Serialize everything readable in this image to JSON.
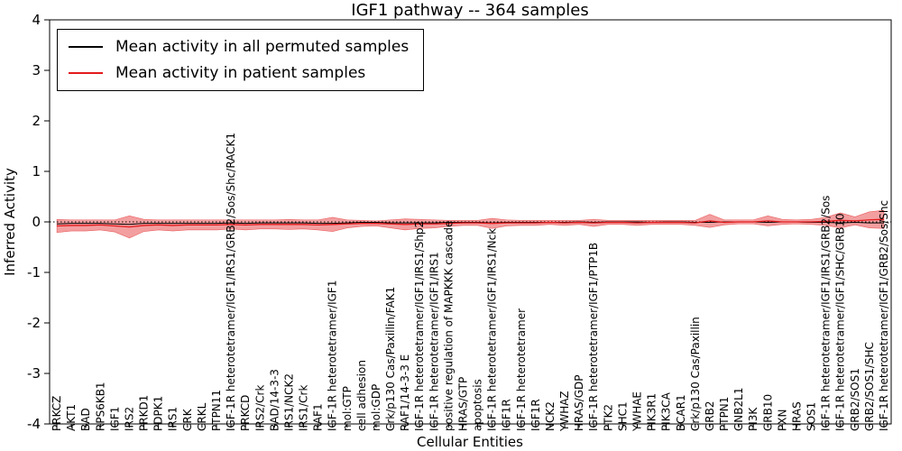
{
  "title": "IGF1 pathway -- 364 samples",
  "legend": [
    {
      "label": "Mean activity in all permuted samples",
      "color": "#000000"
    },
    {
      "label": "Mean activity in patient samples",
      "color": "#e31a1c"
    }
  ],
  "chart_data": {
    "type": "line",
    "title": "IGF1 pathway -- 364 samples",
    "xlabel": "Cellular Entities",
    "ylabel": "Inferred Activity",
    "ylim": [
      -4,
      4
    ],
    "y_ticks": [
      -4,
      -3,
      -2,
      -1,
      0,
      1,
      2,
      3,
      4
    ],
    "grid": false,
    "legend_position": "upper left",
    "zero_line_style": "dotted",
    "categories": [
      "PRKCZ",
      "AKT1",
      "BAD",
      "RPS6KB1",
      "IGF1",
      "IRS2",
      "PRKD1",
      "PDPK1",
      "IRS1",
      "CRK",
      "CRKL",
      "PTPN11",
      "IGF-1R heterotetramer/IGF1/IRS1/GRB2/Sos/Shc/RACK1",
      "PRKCD",
      "IRS2/Crk",
      "BAD/14-3-3",
      "IRS1/NCK2",
      "IRS1/Crk",
      "RAF1",
      "IGF-1R heterotetramer/IGF1",
      "mol:GTP",
      "cell adhesion",
      "mol:GDP",
      "Crk/p130 Cas/Paxillin/FAK1",
      "RAF1/14-3-3 E",
      "IGF-1R heterotetramer/IGF1/IRS1/Shp2",
      "IGF-1R heterotetramer/IGF1/IRS1",
      "positive regulation of MAPKKK cascade",
      "HRAS/GTP",
      "apoptosis",
      "IGF-1R heterotetramer/IGF1/IRS1/Nck",
      "IGF1R",
      "IGF-1R heterotetramer",
      "IGF1R",
      "NCK2",
      "YWHAZ",
      "HRAS/GDP",
      "IGF-1R heterotetramer/IGF1/PTP1B",
      "PTK2",
      "SHC1",
      "YWHAE",
      "PIK3R1",
      "PIK3CA",
      "BCAR1",
      "Crk/p130 Cas/Paxillin",
      "GRB2",
      "PTPN1",
      "GNB2L1",
      "PI3K",
      "GRB10",
      "PXN",
      "HRAS",
      "SOS1",
      "IGF-1R heterotetramer/IGF1/IRS1/GRB2/Sos",
      "IGF-1R heterotetramer/IGF1/SHC/GRB10",
      "GRB2/SOS1",
      "GRB2/SOS1/SHC",
      "IGF-1R heterotetramer/IGF1/GRB2/Sos/Shc"
    ],
    "series": [
      {
        "name": "Mean activity in all permuted samples",
        "color": "#000000",
        "values": [
          -0.04,
          -0.03,
          -0.03,
          -0.03,
          -0.04,
          -0.05,
          -0.03,
          -0.03,
          -0.03,
          -0.03,
          -0.03,
          -0.03,
          -0.02,
          -0.03,
          -0.02,
          -0.02,
          -0.02,
          -0.02,
          -0.03,
          -0.03,
          -0.02,
          -0.01,
          -0.01,
          -0.02,
          -0.02,
          -0.02,
          -0.02,
          -0.01,
          -0.01,
          -0.01,
          -0.02,
          -0.01,
          -0.01,
          -0.01,
          -0.01,
          -0.01,
          0.0,
          -0.01,
          0.0,
          0.0,
          0.0,
          -0.01,
          0.0,
          0.0,
          -0.01,
          -0.01,
          0.0,
          0.0,
          0.0,
          -0.01,
          0.0,
          0.0,
          -0.01,
          -0.01,
          -0.02,
          -0.01,
          -0.02,
          -0.02
        ]
      },
      {
        "name": "Mean activity in patient samples",
        "color": "#e31a1c",
        "band_color": "#e31a1c",
        "values": [
          -0.08,
          -0.07,
          -0.07,
          -0.06,
          -0.08,
          -0.1,
          -0.07,
          -0.06,
          -0.07,
          -0.06,
          -0.06,
          -0.06,
          -0.05,
          -0.06,
          -0.05,
          -0.05,
          -0.05,
          -0.05,
          -0.06,
          -0.05,
          -0.04,
          -0.03,
          -0.03,
          -0.04,
          -0.05,
          -0.04,
          -0.04,
          -0.03,
          -0.02,
          -0.02,
          -0.03,
          -0.02,
          -0.02,
          -0.02,
          -0.01,
          -0.02,
          -0.01,
          -0.02,
          -0.01,
          -0.01,
          -0.02,
          -0.01,
          -0.01,
          -0.01,
          -0.02,
          0.02,
          -0.01,
          0.0,
          0.0,
          0.02,
          0.0,
          0.0,
          0.0,
          0.01,
          0.03,
          0.02,
          0.04,
          0.05
        ],
        "band_halfwidth": [
          0.13,
          0.11,
          0.11,
          0.1,
          0.12,
          0.22,
          0.12,
          0.1,
          0.11,
          0.1,
          0.1,
          0.1,
          0.09,
          0.1,
          0.09,
          0.09,
          0.1,
          0.09,
          0.1,
          0.14,
          0.08,
          0.06,
          0.05,
          0.08,
          0.11,
          0.09,
          0.08,
          0.06,
          0.05,
          0.05,
          0.1,
          0.06,
          0.05,
          0.05,
          0.04,
          0.05,
          0.04,
          0.07,
          0.04,
          0.04,
          0.05,
          0.04,
          0.04,
          0.04,
          0.05,
          0.13,
          0.05,
          0.04,
          0.04,
          0.1,
          0.05,
          0.04,
          0.05,
          0.08,
          0.15,
          0.08,
          0.16,
          0.18
        ]
      }
    ]
  }
}
